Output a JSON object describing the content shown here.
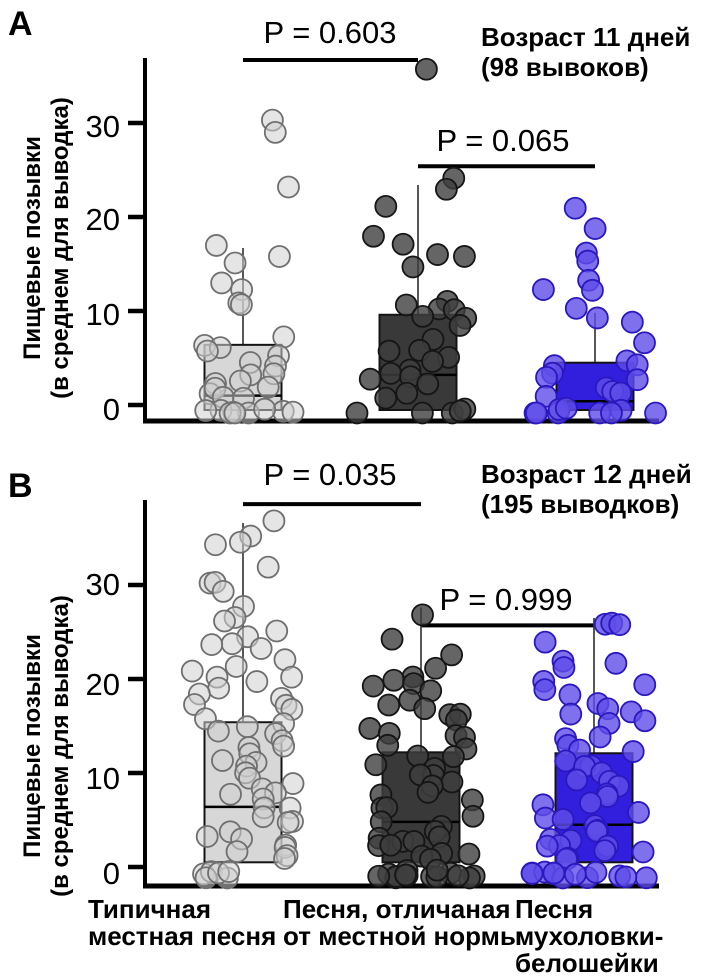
{
  "colors": {
    "light": {
      "box": "#d3d3d3",
      "box_opacity": 0.9,
      "dot": "#cfcfcf",
      "dot_opacity": 0.55,
      "dot_stroke": "#6f6f6f"
    },
    "dark": {
      "box": "#2e2e2e",
      "box_opacity": 0.95,
      "dot": "#3e3e3e",
      "dot_opacity": 0.8,
      "dot_stroke": "#151515"
    },
    "blue": {
      "box": "#2713dc",
      "box_opacity": 0.95,
      "dot": "#5f4de8",
      "dot_opacity": 0.8,
      "dot_stroke": "#2a18bf"
    }
  },
  "ylabel_line1": "Пищевые позывки",
  "ylabel_line2": "(в среднем для выводка)",
  "categories": [
    {
      "lines": [
        "Типичная",
        "местная песня"
      ]
    },
    {
      "lines": [
        "Песня, отличаная",
        "от местной нормы"
      ]
    },
    {
      "lines": [
        "Песня",
        "мухоловки-",
        "белошейки"
      ]
    }
  ],
  "chart_data": [
    {
      "type": "boxplot+jitter",
      "panel_label": "A",
      "title_line1": "Возраст 11 дней",
      "title_line2": "(98 вывоков)",
      "ylabel": "Пищевые позывки (в среднем для выводка)",
      "yticks": [
        30,
        20,
        10,
        0
      ],
      "ylim": [
        0,
        38
      ],
      "grid": false,
      "comparisons": [
        {
          "gidx": [
            0,
            1
          ],
          "label": "P = 0.603",
          "bar_value": 36.7
        },
        {
          "gidx": [
            1,
            2
          ],
          "label": "P = 0.065",
          "bar_value": 25.4
        }
      ],
      "groups": [
        {
          "category": "Типичная местная песня",
          "color_key": "light",
          "box": {
            "q1": 0,
            "median": 1.0,
            "q3": 6.4,
            "whisker_high": 16.7
          },
          "points": [
            30,
            29,
            23,
            17,
            16,
            15,
            13,
            12.5,
            11,
            10.5,
            7,
            6.5,
            6,
            5.5,
            5,
            4.5,
            4,
            3.5,
            3,
            2.5,
            2,
            2,
            1.5,
            1.5,
            1,
            1,
            0.5,
            0.5,
            0.5,
            0.5,
            0,
            0,
            0,
            0,
            0
          ]
        },
        {
          "category": "Песня, отличаная от местной нормы",
          "color_key": "dark",
          "box": {
            "q1": 0,
            "median": 3.2,
            "q3": 9.6,
            "whisker_high": 23.4
          },
          "points": [
            35.5,
            24,
            23,
            21,
            18,
            17,
            16,
            15.5,
            15,
            11,
            10.5,
            10,
            10,
            9.5,
            9,
            8.5,
            7,
            6,
            5.5,
            5,
            4.5,
            4,
            3.5,
            3,
            2.5,
            2,
            1.5,
            1,
            0.5,
            0.5,
            0,
            0,
            0
          ]
        },
        {
          "category": "Песня мухоловки-белошейки",
          "color_key": "blue",
          "box": {
            "q1": 0,
            "median": 0.4,
            "q3": 4.5,
            "whisker_high": 9.8
          },
          "points": [
            21,
            18.5,
            16,
            15.5,
            13,
            12.5,
            12,
            10.5,
            9.5,
            9,
            6.5,
            5,
            4.5,
            4,
            3.5,
            3,
            2.5,
            2,
            1.5,
            1,
            1,
            0.5,
            0.5,
            0.5,
            0,
            0,
            0,
            0,
            0,
            0
          ]
        }
      ]
    },
    {
      "type": "boxplot+jitter",
      "panel_label": "B",
      "title_line1": "Возраст 12 дней",
      "title_line2": "(195 выводков)",
      "ylabel": "Пищевые позывки (в среднем для выводка)",
      "yticks": [
        30,
        20,
        10,
        0
      ],
      "ylim": [
        0,
        38
      ],
      "grid": false,
      "comparisons": [
        {
          "gidx": [
            0,
            1
          ],
          "label": "P = 0.035",
          "bar_value": 38.6
        },
        {
          "gidx": [
            1,
            2
          ],
          "label": "P = 0.999",
          "bar_value": 25.7
        }
      ],
      "groups": [
        {
          "category": "Типичная местная песня",
          "color_key": "light",
          "box": {
            "q1": 0.5,
            "median": 6.4,
            "q3": 15.4,
            "whisker_high": 36.6
          },
          "points": [
            37,
            35,
            34.5,
            34,
            32,
            30.5,
            30,
            29.5,
            28,
            26.5,
            26,
            25,
            24.5,
            24,
            23.5,
            23,
            22,
            21.5,
            21,
            20.5,
            20,
            19.5,
            19,
            18.5,
            18,
            17.5,
            17,
            16.5,
            16,
            15.5,
            15,
            14.5,
            14,
            13.5,
            13,
            12.5,
            12,
            11.5,
            11,
            10.5,
            10,
            9.5,
            9,
            8.5,
            8,
            7.5,
            7,
            6.5,
            6,
            5.5,
            5,
            4.5,
            4,
            3.5,
            3,
            2.5,
            2,
            1.5,
            1,
            1,
            0.5,
            0.5,
            0,
            0,
            0,
            0
          ]
        },
        {
          "category": "Песня, отличаная от местной нормы",
          "color_key": "dark",
          "box": {
            "q1": 0.5,
            "median": 4.8,
            "q3": 12.2,
            "whisker_high": 27.6
          },
          "points": [
            27,
            24,
            22.5,
            21,
            20.5,
            20,
            19.5,
            19,
            18.5,
            18,
            17.5,
            17,
            16.5,
            16,
            15.5,
            15,
            14.5,
            14,
            13.5,
            13,
            12.5,
            12,
            11.5,
            11,
            10.5,
            10,
            9.5,
            9,
            8.5,
            8,
            7.5,
            7,
            6.5,
            6,
            5.5,
            5,
            4.5,
            4,
            3.5,
            3,
            3,
            2.5,
            2,
            2,
            1.5,
            1.5,
            1,
            1,
            0.5,
            0.5,
            0.5,
            0.5,
            0,
            0,
            0,
            0,
            0,
            0,
            0,
            0,
            0,
            0
          ]
        },
        {
          "category": "Песня мухоловки-белошейки",
          "color_key": "blue",
          "box": {
            "q1": 0.5,
            "median": 4.5,
            "q3": 12.1,
            "whisker_high": 26.5
          },
          "points": [
            26,
            26,
            25.5,
            24,
            22,
            21.5,
            21,
            20,
            19.5,
            19,
            18,
            17.5,
            17,
            16.5,
            16,
            15.5,
            15,
            14,
            13.5,
            13,
            12.5,
            12,
            11.5,
            11,
            10.5,
            10,
            9.5,
            9,
            8.5,
            8,
            7.5,
            7,
            6.5,
            6,
            5.5,
            5,
            4.5,
            4,
            3.5,
            3,
            3,
            2.5,
            2,
            2,
            1.5,
            1.5,
            1,
            1,
            0.5,
            0.5,
            0.5,
            0,
            0,
            0,
            0,
            0,
            0,
            0,
            0,
            0
          ]
        }
      ]
    }
  ]
}
